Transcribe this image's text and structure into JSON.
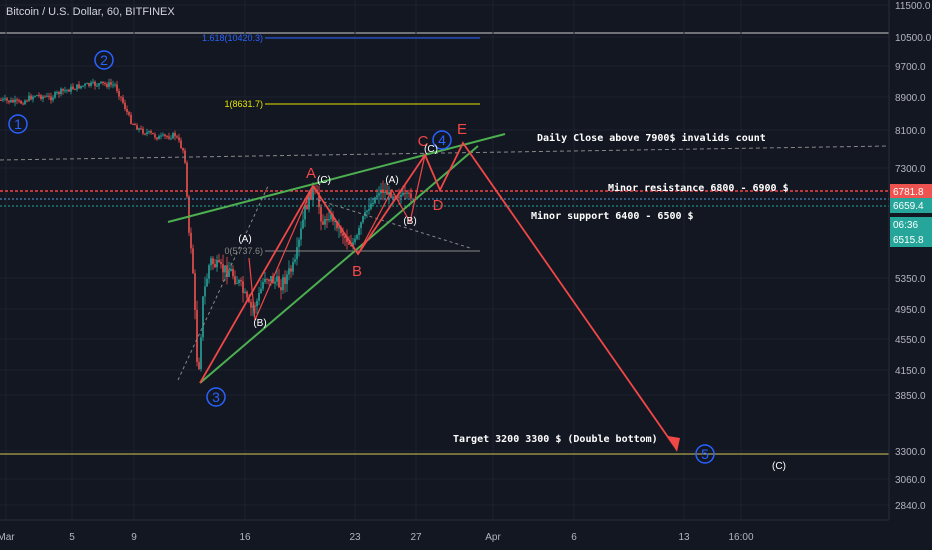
{
  "header": {
    "title": "Bitcoin / U.S. Dollar, 60, BITFINEX"
  },
  "colors": {
    "background": "#131722",
    "grid": "#1e2230",
    "candle_up": "#26a69a",
    "candle_down": "#ef5350",
    "wave_red": "#f04747",
    "channel_green": "#4caf50",
    "fib_blue": "#2962ff",
    "fib_yellow": "#e6e600",
    "target_yellow": "#d4c95a",
    "label_blue": "#2962ff",
    "text": "#d1d4dc"
  },
  "chart_data": {
    "type": "candlestick",
    "title": "Bitcoin / U.S. Dollar, 60, BITFINEX",
    "y_ticks": [
      "11500.0",
      "10500.0",
      "9700.0",
      "8900.0",
      "8100.0",
      "7300.0",
      "5350.0",
      "4950.0",
      "4550.0",
      "4150.0",
      "3850.0",
      "3300.0",
      "3060.0",
      "2840.0"
    ],
    "x_ticks": [
      "Mar",
      "5",
      "9",
      "16",
      "23",
      "27",
      "Apr",
      "6",
      "13",
      "16:00"
    ],
    "price_badges": [
      {
        "value": "6781.8",
        "color": "#ef5350"
      },
      {
        "value": "6659.4",
        "color": "#26a69a"
      },
      {
        "value": "06:36",
        "color": "#26a69a"
      },
      {
        "value": "6515.8",
        "color": "#26a69a"
      }
    ],
    "fib_levels": [
      {
        "label": "1.618(10420.3)",
        "color": "#2962ff"
      },
      {
        "label": "1(8631.7)",
        "color": "#e6e600"
      },
      {
        "label": "0(5737.6)",
        "color": "#888888"
      }
    ],
    "wave_labels_major": [
      "1",
      "2",
      "3",
      "4",
      "5"
    ],
    "wave_labels_abcde": [
      "A",
      "B",
      "C",
      "D",
      "E"
    ],
    "wave_labels_sub": [
      "(A)",
      "(B)",
      "(C)",
      "(A)",
      "(B)",
      "(C)",
      "(C)"
    ],
    "annotations": [
      "Daily Close above 7900$ invalids count",
      "Minor resistance 6800 - 6900 $",
      "Minor support 6400 - 6500 $",
      "Target 3200 3300 $ (Double bottom)"
    ]
  }
}
